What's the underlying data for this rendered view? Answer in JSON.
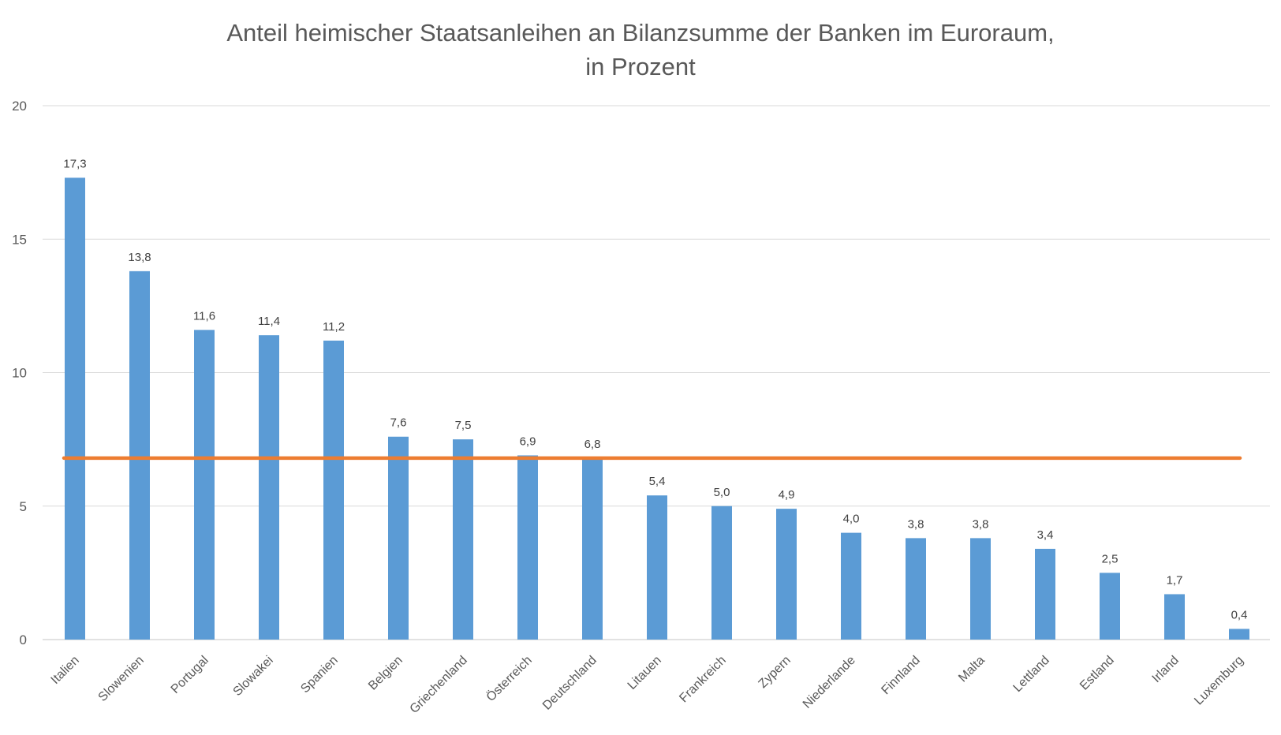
{
  "chart_data": {
    "type": "bar",
    "title_line1": "Anteil heimischer Staatsanleihen an Bilanzsumme der Banken im Euroraum,",
    "title_line2": "in Prozent",
    "xlabel": "",
    "ylabel": "",
    "ylim": [
      0,
      20
    ],
    "yticks": [
      0,
      5,
      10,
      15,
      20
    ],
    "grid": true,
    "legend": "none",
    "categories": [
      "Italien",
      "Slowenien",
      "Portugal",
      "Slowakei",
      "Spanien",
      "Belgien",
      "Griechenland",
      "Österreich",
      "Deutschland",
      "Litauen",
      "Frankreich",
      "Zypern",
      "Niederlande",
      "Finnland",
      "Malta",
      "Lettland",
      "Estland",
      "Irland",
      "Luxemburg"
    ],
    "values": [
      17.3,
      13.8,
      11.6,
      11.4,
      11.2,
      7.6,
      7.5,
      6.9,
      6.8,
      5.4,
      5.0,
      4.9,
      4.0,
      3.8,
      3.8,
      3.4,
      2.5,
      1.7,
      0.4
    ],
    "value_labels": [
      "17,3",
      "13,8",
      "11,6",
      "11,4",
      "11,2",
      "7,6",
      "7,5",
      "6,9",
      "6,8",
      "5,4",
      "5,0",
      "4,9",
      "4,0",
      "3,8",
      "3,8",
      "3,4",
      "2,5",
      "1,7",
      "0,4"
    ],
    "reference_line": {
      "value": 6.8
    },
    "colors": {
      "bar": "#5b9bd5",
      "reference_line": "#ed7d31",
      "grid": "#d9d9d9"
    }
  }
}
